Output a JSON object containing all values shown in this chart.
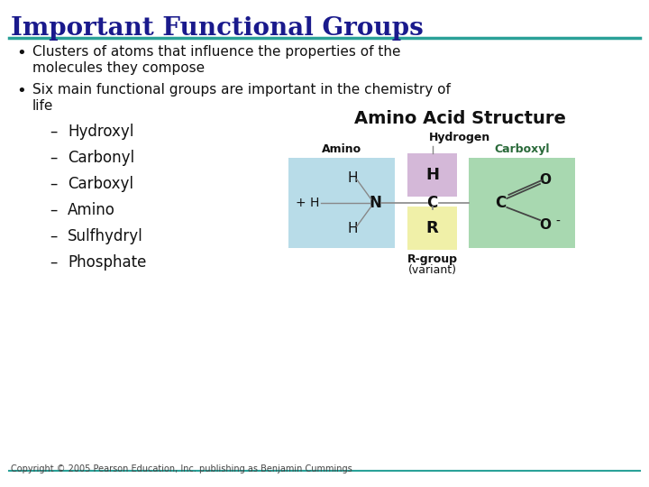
{
  "title": "Important Functional Groups",
  "title_color": "#1a1a8c",
  "title_fontsize": 20,
  "line_color": "#2aa198",
  "bg_color": "#ffffff",
  "bullet1_line1": "Clusters of atoms that influence the properties of the",
  "bullet1_line2": "molecules they compose",
  "bullet2_line1": "Six main functional groups are important in the chemistry of",
  "bullet2_line2": "life",
  "sub_items": [
    "Hydroxyl",
    "Carbonyl",
    "Carboxyl",
    "Amino",
    "Sulfhydryl",
    "Phosphate"
  ],
  "diagram_title": "Amino Acid Structure",
  "hydrogen_label": "Hydrogen",
  "amino_label": "Amino",
  "carboxyl_label": "Carboxyl",
  "rgroup_label": "R-group",
  "rgroup_label2": "(variant)",
  "copyright": "Copyright © 2005 Pearson Education, Inc. publishing as Benjamin Cummings",
  "text_color": "#111111",
  "amino_box_color": "#b8dce8",
  "carboxyl_box_color": "#a8d8b0",
  "hydrogen_box_color": "#d4b8d8",
  "rgroup_box_color": "#f0f0a8",
  "carboxyl_label_color": "#2a6a3a"
}
